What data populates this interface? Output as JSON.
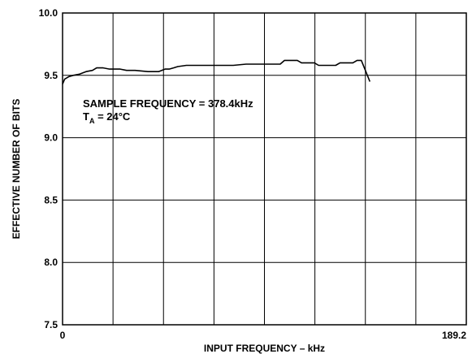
{
  "chart_data": {
    "type": "line",
    "xlabel": "INPUT FREQUENCY – kHz",
    "ylabel": "EFFECTIVE NUMBER OF BITS",
    "xlim": [
      0,
      189.2
    ],
    "ylim": [
      7.5,
      10.0
    ],
    "x_tick_labels": [
      "0",
      "189.2"
    ],
    "y_ticks": [
      7.5,
      8.0,
      8.5,
      9.0,
      9.5,
      10.0
    ],
    "y_tick_labels": [
      "7.5",
      "8.0",
      "8.5",
      "9.0",
      "9.5",
      "10.0"
    ],
    "grid": true,
    "grid_divisions": {
      "x": 8,
      "y": 5
    },
    "annotation": {
      "line1": "SAMPLE FREQUENCY = 378.4kHz",
      "line2_main": "T",
      "line2_sub": "A",
      "line2_rest": " = 24°C"
    },
    "series": [
      {
        "x": [
          0,
          1,
          3,
          5,
          8,
          11,
          14,
          16,
          19,
          22,
          27,
          30,
          34,
          40,
          45,
          48,
          50,
          52,
          54,
          58,
          65,
          74,
          80,
          86,
          95,
          102,
          104,
          110,
          112,
          118,
          120,
          128,
          130,
          136,
          138,
          140,
          144
        ],
        "y": [
          9.43,
          9.47,
          9.49,
          9.5,
          9.51,
          9.53,
          9.54,
          9.56,
          9.56,
          9.55,
          9.55,
          9.54,
          9.54,
          9.53,
          9.53,
          9.55,
          9.55,
          9.56,
          9.57,
          9.58,
          9.58,
          9.58,
          9.58,
          9.59,
          9.59,
          9.59,
          9.62,
          9.62,
          9.6,
          9.6,
          9.58,
          9.58,
          9.6,
          9.6,
          9.62,
          9.62,
          9.45
        ],
        "color": "#000000"
      }
    ]
  }
}
